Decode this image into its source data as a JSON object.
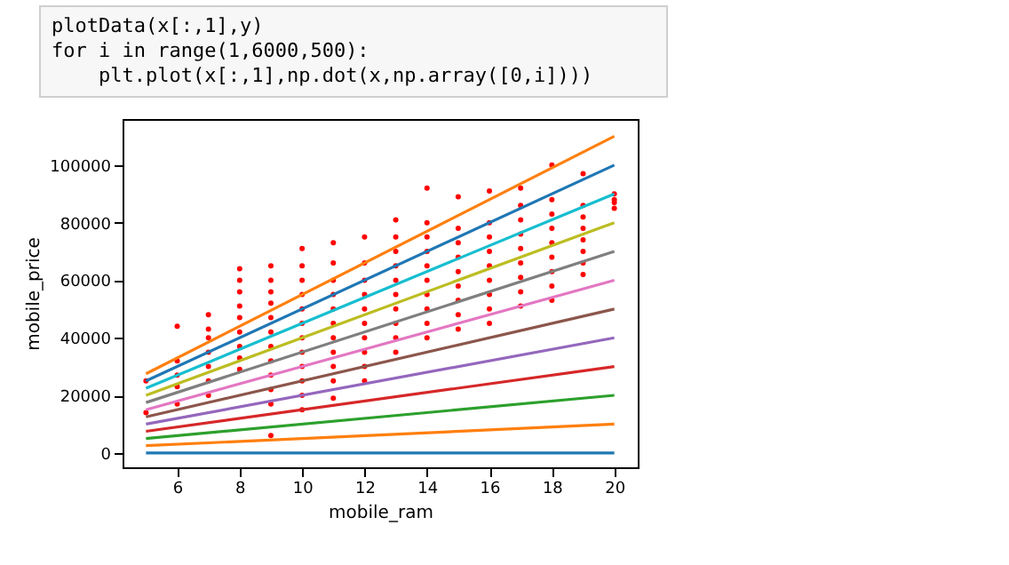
{
  "chart_data": {
    "type": "line",
    "xlabel": "mobile_ram",
    "ylabel": "mobile_price",
    "annotations": [
      "plotData(x[:,1],y)",
      "for i in range(1,6000,500):",
      "    plt.plot(x[:,1],np.dot(x,np.array([0,i])))"
    ],
    "xlim": [
      4.25,
      20.75
    ],
    "xticks": [
      6,
      8,
      10,
      12,
      14,
      16,
      18,
      20
    ],
    "ylim": [
      -5000,
      116000
    ],
    "yticks": [
      0,
      20000,
      40000,
      60000,
      80000,
      100000
    ],
    "grid": false,
    "legend": false,
    "series": [
      {
        "type": "scatter",
        "marker": "circle",
        "color": "#ff0000",
        "x": [
          5,
          5,
          6,
          6,
          6,
          6,
          6,
          7,
          7,
          7,
          7,
          7,
          7,
          7,
          8,
          8,
          8,
          8,
          8,
          8,
          8,
          8,
          8,
          9,
          9,
          9,
          9,
          9,
          9,
          9,
          9,
          9,
          9,
          9,
          9,
          10,
          10,
          10,
          10,
          10,
          10,
          10,
          10,
          10,
          10,
          10,
          10,
          11,
          11,
          11,
          11,
          11,
          11,
          11,
          11,
          11,
          11,
          11,
          12,
          12,
          12,
          12,
          12,
          12,
          12,
          12,
          12,
          12,
          13,
          13,
          13,
          13,
          13,
          13,
          13,
          13,
          13,
          13,
          14,
          14,
          14,
          14,
          14,
          14,
          14,
          14,
          14,
          14,
          15,
          15,
          15,
          15,
          15,
          15,
          15,
          15,
          15,
          16,
          16,
          16,
          16,
          16,
          16,
          16,
          16,
          16,
          17,
          17,
          17,
          17,
          17,
          17,
          17,
          17,
          17,
          18,
          18,
          18,
          18,
          18,
          18,
          18,
          18,
          18,
          19,
          19,
          19,
          19,
          19,
          19,
          19,
          19,
          20,
          20,
          20,
          20
        ],
        "values": [
          14000,
          25000,
          17000,
          23000,
          27000,
          32000,
          44000,
          20000,
          25000,
          30000,
          35000,
          40000,
          43000,
          48000,
          29000,
          33000,
          37000,
          42000,
          47000,
          51000,
          56000,
          60000,
          64000,
          6000,
          17000,
          22000,
          27000,
          32000,
          37000,
          42000,
          47000,
          52000,
          56000,
          60000,
          65000,
          15000,
          20000,
          25000,
          30000,
          35000,
          40000,
          45000,
          50000,
          55000,
          60000,
          65000,
          71000,
          19000,
          25000,
          30000,
          35000,
          40000,
          45000,
          50000,
          55000,
          60000,
          66000,
          73000,
          25000,
          30000,
          35000,
          40000,
          45000,
          50000,
          55000,
          60000,
          66000,
          75000,
          35000,
          40000,
          45000,
          50000,
          55000,
          60000,
          65000,
          70000,
          75000,
          81000,
          40000,
          45000,
          50000,
          55000,
          60000,
          65000,
          70000,
          75000,
          80000,
          92000,
          43000,
          48000,
          53000,
          58000,
          63000,
          68000,
          73000,
          78000,
          89000,
          45000,
          50000,
          55000,
          60000,
          65000,
          70000,
          75000,
          80000,
          91000,
          51000,
          56000,
          61000,
          66000,
          71000,
          76000,
          81000,
          86000,
          92000,
          53000,
          58000,
          63000,
          68000,
          73000,
          78000,
          83000,
          88000,
          100000,
          62000,
          66000,
          70000,
          74000,
          78000,
          82000,
          86000,
          97000,
          85000,
          87000,
          88000,
          90000
        ]
      },
      {
        "color": "#1f77b4",
        "x": [
          5,
          20
        ],
        "values": [
          0,
          0
        ]
      },
      {
        "color": "#ff7f0e",
        "x": [
          5,
          20
        ],
        "values": [
          2500,
          10000
        ]
      },
      {
        "color": "#2ca02c",
        "x": [
          5,
          20
        ],
        "values": [
          5000,
          20000
        ]
      },
      {
        "color": "#d62728",
        "x": [
          5,
          20
        ],
        "values": [
          7500,
          30000
        ]
      },
      {
        "color": "#9467bd",
        "x": [
          5,
          20
        ],
        "values": [
          10000,
          40000
        ]
      },
      {
        "color": "#8c564b",
        "x": [
          5,
          20
        ],
        "values": [
          12500,
          50000
        ]
      },
      {
        "color": "#e377c2",
        "x": [
          5,
          20
        ],
        "values": [
          15000,
          60000
        ]
      },
      {
        "color": "#7f7f7f",
        "x": [
          5,
          20
        ],
        "values": [
          17500,
          70000
        ]
      },
      {
        "color": "#bcbd22",
        "x": [
          5,
          20
        ],
        "values": [
          20000,
          80000
        ]
      },
      {
        "color": "#17becf",
        "x": [
          5,
          20
        ],
        "values": [
          22500,
          90000
        ]
      },
      {
        "color": "#1f77b4",
        "x": [
          5,
          20
        ],
        "values": [
          25000,
          100000
        ]
      },
      {
        "color": "#ff7f0e",
        "x": [
          5,
          20
        ],
        "values": [
          27500,
          110000
        ]
      }
    ]
  }
}
